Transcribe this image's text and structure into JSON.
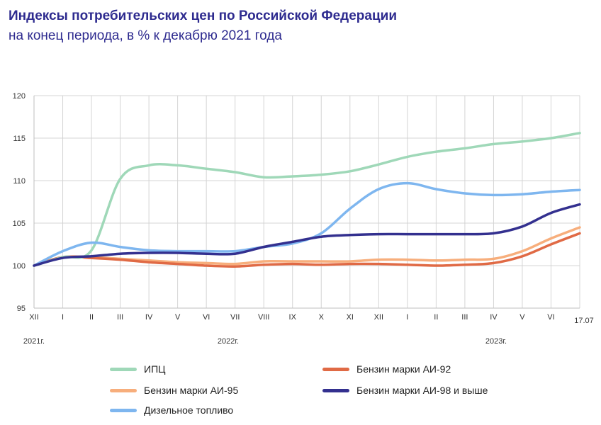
{
  "header": {
    "title": "Индексы потребительских цен по Российской Федерации",
    "subtitle": "на конец периода, в % к декабрю 2021 года"
  },
  "chart_data": {
    "type": "line",
    "ylim": [
      95,
      120
    ],
    "yticks": [
      "95",
      "100",
      "105",
      "110",
      "115",
      "120"
    ],
    "categories": [
      "XII",
      "I",
      "II",
      "III",
      "IV",
      "V",
      "VI",
      "VII",
      "VIII",
      "IX",
      "X",
      "XI",
      "XII",
      "I",
      "II",
      "III",
      "IV",
      "V",
      "VI",
      "17.07"
    ],
    "year_labels": [
      "2021г.",
      "2022г.",
      "2023г."
    ],
    "grid": true,
    "legend_position": "bottom",
    "series": [
      {
        "name": "ИПЦ",
        "color": "#9fd8b8",
        "values": [
          100,
          101,
          101.8,
          110.2,
          111.8,
          111.8,
          111.4,
          111.0,
          110.4,
          110.5,
          110.7,
          111.1,
          111.9,
          112.8,
          113.4,
          113.8,
          114.3,
          114.6,
          115.0,
          115.6
        ]
      },
      {
        "name": "Бензин марки АИ-92",
        "color": "#e06a45",
        "values": [
          100,
          101.0,
          100.9,
          100.7,
          100.4,
          100.2,
          100.0,
          99.9,
          100.1,
          100.2,
          100.1,
          100.2,
          100.2,
          100.1,
          100.0,
          100.1,
          100.3,
          101.1,
          102.5,
          103.8
        ]
      },
      {
        "name": "Бензин марки АИ-95",
        "color": "#f7ae7c",
        "values": [
          100,
          101.0,
          101.0,
          100.8,
          100.6,
          100.4,
          100.3,
          100.2,
          100.5,
          100.5,
          100.5,
          100.5,
          100.7,
          100.7,
          100.6,
          100.7,
          100.8,
          101.7,
          103.2,
          104.5
        ]
      },
      {
        "name": "Бензин марки АИ-98 и выше",
        "color": "#33308f",
        "values": [
          100,
          100.9,
          101.1,
          101.4,
          101.5,
          101.5,
          101.4,
          101.4,
          102.2,
          102.8,
          103.4,
          103.6,
          103.7,
          103.7,
          103.7,
          103.7,
          103.8,
          104.6,
          106.2,
          107.2
        ]
      },
      {
        "name": "Дизельное топливо",
        "color": "#7eb6ef",
        "values": [
          100,
          101.7,
          102.7,
          102.2,
          101.8,
          101.7,
          101.7,
          101.7,
          102.2,
          102.6,
          103.8,
          106.7,
          109.0,
          109.7,
          109.0,
          108.5,
          108.3,
          108.4,
          108.7,
          108.9
        ]
      }
    ]
  }
}
